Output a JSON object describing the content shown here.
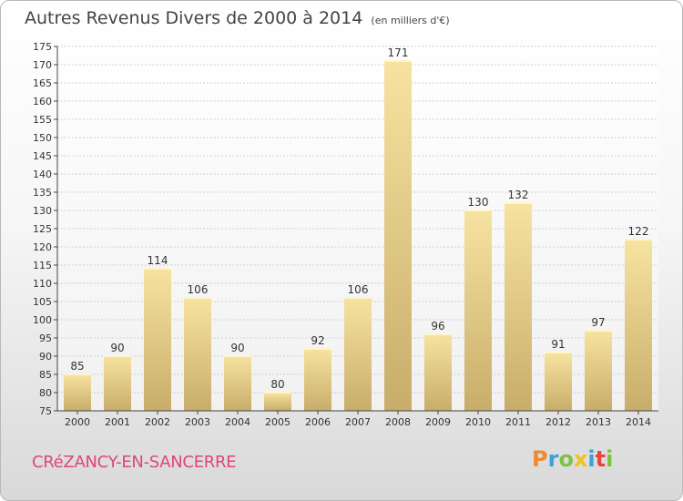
{
  "chart_data": {
    "type": "bar",
    "title": "Autres Revenus Divers de 2000 à 2014",
    "subtitle": "(en milliers d'€)",
    "categories": [
      "2000",
      "2001",
      "2002",
      "2003",
      "2004",
      "2005",
      "2006",
      "2007",
      "2008",
      "2009",
      "2010",
      "2011",
      "2012",
      "2013",
      "2014"
    ],
    "values": [
      85,
      90,
      114,
      106,
      90,
      80,
      92,
      106,
      171,
      96,
      130,
      132,
      91,
      97,
      122
    ],
    "ylim": [
      75,
      175
    ],
    "ytick_step": 5,
    "grid": true,
    "bar_color": "#dcc27e"
  },
  "footer": {
    "commune": "CRéZANCY-EN-SANCERRE",
    "logo": {
      "letters": [
        "P",
        "r",
        "o",
        "x",
        "i",
        "t",
        "i"
      ],
      "colors": [
        "#f08a2c",
        "#3ea0d8",
        "#7cc242",
        "#f2c21c",
        "#3ea0d8",
        "#e8453c",
        "#7cc242"
      ]
    }
  }
}
